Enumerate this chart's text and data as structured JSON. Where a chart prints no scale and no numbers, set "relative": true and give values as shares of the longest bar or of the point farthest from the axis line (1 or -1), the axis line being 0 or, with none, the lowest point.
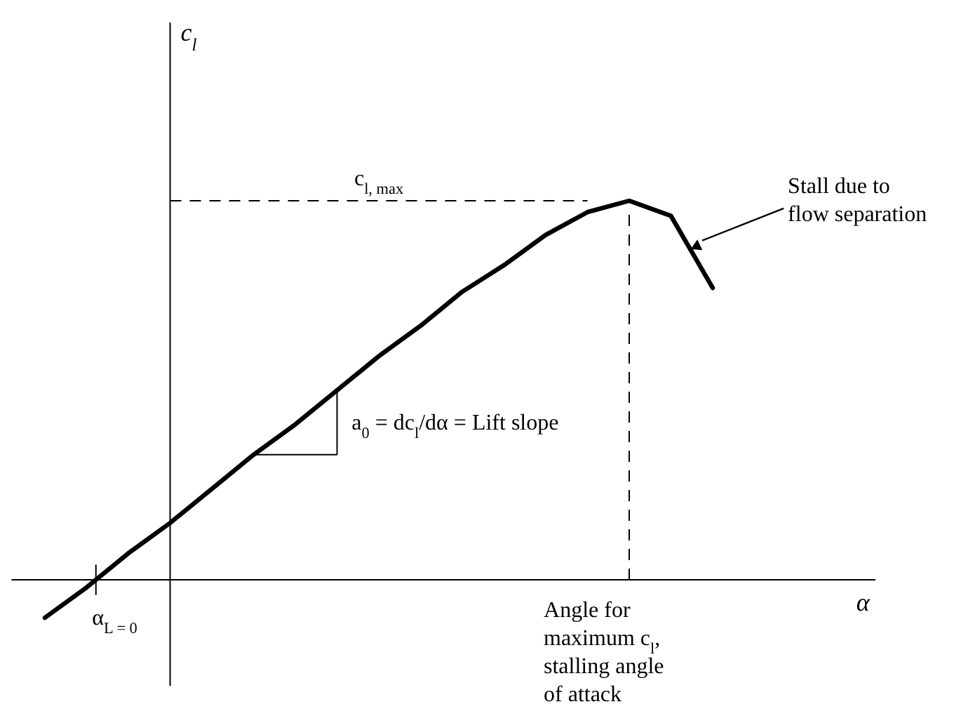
{
  "chart_data": {
    "type": "line",
    "relative": true,
    "categories": [
      null,
      null,
      null,
      null,
      null,
      null,
      null,
      null,
      null,
      null,
      null,
      null,
      null,
      null,
      null,
      null,
      null
    ],
    "series": [
      {
        "color": "#000000",
        "values": [
          -0.1,
          -0.02,
          0.07,
          0.15,
          0.24,
          0.33,
          0.41,
          0.5,
          0.59,
          0.67,
          0.76,
          0.83,
          0.91,
          0.97,
          1.0,
          0.96,
          0.77
        ]
      }
    ],
    "ref_lines": [
      {
        "axis": "y",
        "value": 1,
        "label": "c$_{l, max}$",
        "line_style": "dashed"
      }
    ],
    "annotations": [
      "a$_{0}$ = dc$_{l}$/dα = Lift slope",
      "Stall due to flow separation",
      "α$_{L = 0}$",
      "Angle for maximum c$_{l}$, stalling angle of attack",
      "α",
      "c$_{l}$"
    ]
  }
}
